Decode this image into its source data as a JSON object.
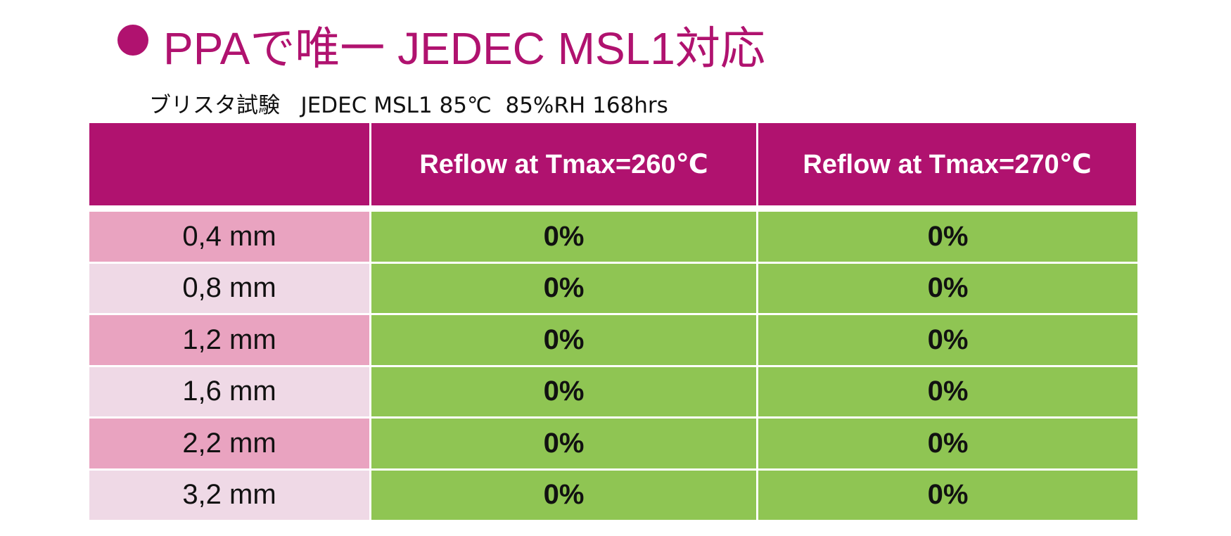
{
  "header": {
    "title": "PPAで唯一 JEDEC MSL1対応",
    "subtitle": "ブリスタ試験   JEDEC MSL1 85℃  85%RH 168hrs"
  },
  "table": {
    "columns": [
      "Reflow at Tmax=260℃",
      "Reflow at Tmax=270℃"
    ],
    "rows": [
      [
        "0,4 mm",
        "0%",
        "0%"
      ],
      [
        "0,8 mm",
        "0%",
        "0%"
      ],
      [
        "1,2 mm",
        "0%",
        "0%"
      ],
      [
        "1,6 mm",
        "0%",
        "0%"
      ],
      [
        "2,2 mm",
        "0%",
        "0%"
      ],
      [
        "3,2 mm",
        "0%",
        "0%"
      ]
    ]
  }
}
